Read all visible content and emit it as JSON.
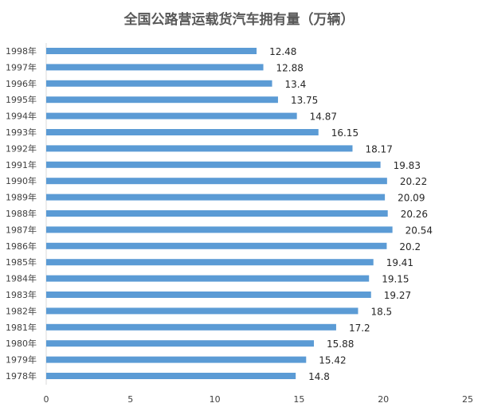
{
  "chart_data": {
    "type": "bar",
    "orientation": "horizontal",
    "title": "全国公路营运载货汽车拥有量（万辆）",
    "categories": [
      "1998年",
      "1997年",
      "1996年",
      "1995年",
      "1994年",
      "1993年",
      "1992年",
      "1991年",
      "1990年",
      "1989年",
      "1988年",
      "1987年",
      "1986年",
      "1985年",
      "1984年",
      "1983年",
      "1982年",
      "1981年",
      "1980年",
      "1979年",
      "1978年"
    ],
    "values": [
      12.48,
      12.88,
      13.4,
      13.75,
      14.87,
      16.15,
      18.17,
      19.83,
      20.22,
      20.09,
      20.26,
      20.54,
      20.2,
      19.41,
      19.15,
      19.27,
      18.5,
      17.2,
      15.88,
      15.42,
      14.8
    ],
    "value_labels": [
      "12.48",
      "12.88",
      "13.4",
      "13.75",
      "14.87",
      "16.15",
      "18.17",
      "19.83",
      "20.22",
      "20.09",
      "20.26",
      "20.54",
      "20.2",
      "19.41",
      "19.15",
      "19.27",
      "18.5",
      "17.2",
      "15.88",
      "15.42",
      "14.8"
    ],
    "xlim": [
      0,
      25
    ],
    "xticks": [
      "0",
      "5",
      "10",
      "15",
      "20",
      "25"
    ],
    "xlabel": "",
    "ylabel": "",
    "grid": false,
    "legend": "none",
    "bar_color": "#5B9BD5"
  }
}
